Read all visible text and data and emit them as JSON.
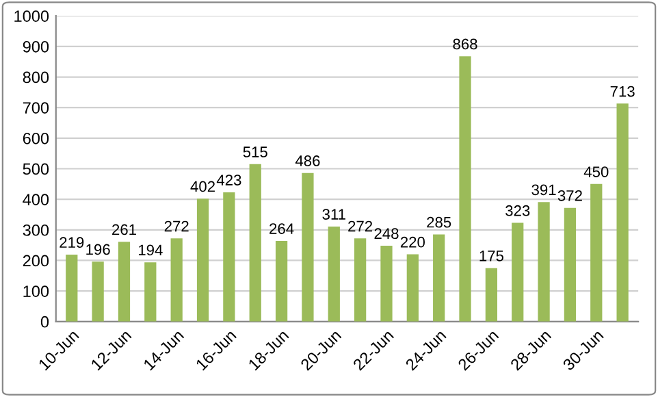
{
  "chart_data": {
    "type": "bar",
    "categories": [
      "10-Jun",
      null,
      "12-Jun",
      null,
      "14-Jun",
      null,
      "16-Jun",
      null,
      "18-Jun",
      null,
      "20-Jun",
      null,
      "22-Jun",
      null,
      "24-Jun",
      null,
      "26-Jun",
      null,
      "28-Jun",
      null,
      "30-Jun",
      null
    ],
    "values": [
      219,
      196,
      261,
      194,
      272,
      402,
      423,
      515,
      264,
      486,
      311,
      272,
      248,
      220,
      285,
      868,
      175,
      323,
      391,
      372,
      450,
      713
    ],
    "color": "#9bbb59",
    "ylim": [
      0,
      1000
    ],
    "yticks": [
      0,
      100,
      200,
      300,
      400,
      500,
      600,
      700,
      800,
      900,
      1000
    ],
    "grid": "y",
    "data_labels": true
  }
}
